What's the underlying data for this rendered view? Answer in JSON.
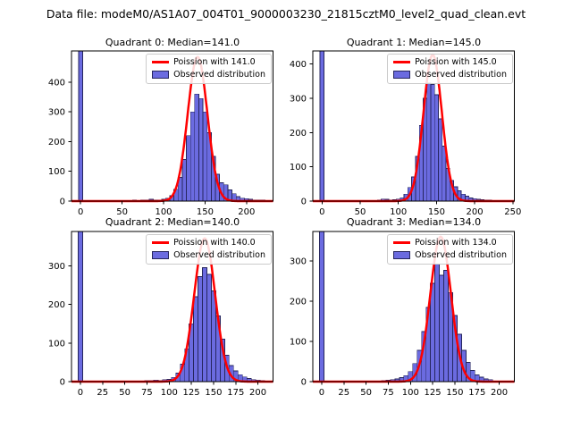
{
  "suptitle": "Data file: modeM0/AS1A07_004T01_9000003230_21815cztM0_level2_quad_clean.evt",
  "colors": {
    "curve": "#ff0000",
    "bar_fill": "#6b6be0",
    "bar_edge": "#26265e",
    "axes": "#000000",
    "legend_border": "#cbcbcb"
  },
  "chart_data": [
    {
      "type": "histogram+line",
      "title": "Quadrant 0: Median=141.0",
      "median": 141.0,
      "legend": {
        "line": "Poission with 141.0",
        "patch": "Observed distribution"
      },
      "xlim": [
        -11,
        232
      ],
      "ylim": [
        0,
        505
      ],
      "xticks": [
        0,
        50,
        100,
        150,
        200
      ],
      "yticks": [
        0,
        100,
        200,
        300,
        400
      ],
      "bin_width": 5,
      "bins": {
        "centers": [
          0,
          65,
          70,
          75,
          80,
          85,
          90,
          95,
          100,
          105,
          110,
          115,
          120,
          125,
          130,
          135,
          140,
          145,
          150,
          155,
          160,
          165,
          170,
          175,
          180,
          185,
          190,
          195,
          200,
          205,
          210,
          215,
          220
        ],
        "counts": [
          600,
          3,
          2,
          3,
          4,
          6,
          4,
          3,
          6,
          10,
          18,
          40,
          80,
          140,
          220,
          300,
          360,
          345,
          300,
          230,
          150,
          90,
          62,
          55,
          38,
          25,
          15,
          10,
          8,
          6,
          4,
          4,
          3
        ]
      },
      "curve": {
        "mu": 141.0,
        "sigma": 11.87,
        "amplitude": 485
      }
    },
    {
      "type": "histogram+line",
      "title": "Quadrant 1: Median=145.0",
      "median": 145.0,
      "legend": {
        "line": "Poission with 145.0",
        "patch": "Observed distribution"
      },
      "xlim": [
        -12,
        252
      ],
      "ylim": [
        0,
        438
      ],
      "xticks": [
        0,
        50,
        100,
        150,
        200,
        250
      ],
      "yticks": [
        0,
        100,
        200,
        300,
        400
      ],
      "bin_width": 5,
      "bins": {
        "centers": [
          0,
          75,
          80,
          85,
          90,
          95,
          100,
          105,
          110,
          115,
          120,
          125,
          130,
          135,
          140,
          145,
          150,
          155,
          160,
          165,
          170,
          175,
          180,
          185,
          190,
          195,
          200,
          205,
          210,
          215,
          220,
          225,
          230,
          235,
          240
        ],
        "counts": [
          600,
          3,
          6,
          5,
          3,
          4,
          6,
          10,
          20,
          40,
          70,
          130,
          220,
          300,
          345,
          340,
          310,
          240,
          160,
          95,
          60,
          42,
          30,
          20,
          14,
          9,
          7,
          5,
          4,
          3,
          3,
          2,
          2,
          2,
          1
        ]
      },
      "curve": {
        "mu": 145.0,
        "sigma": 12.04,
        "amplitude": 427
      }
    },
    {
      "type": "histogram+line",
      "title": "Quadrant 2: Median=140.0",
      "median": 140.0,
      "legend": {
        "line": "Poission with 140.0",
        "patch": "Observed distribution"
      },
      "xlim": [
        -10,
        217
      ],
      "ylim": [
        0,
        389
      ],
      "xticks": [
        0,
        25,
        50,
        75,
        100,
        125,
        150,
        175,
        200
      ],
      "yticks": [
        0,
        100,
        200,
        300
      ],
      "bin_width": 5,
      "bins": {
        "centers": [
          0,
          75,
          80,
          85,
          90,
          95,
          100,
          105,
          110,
          115,
          120,
          125,
          130,
          135,
          140,
          145,
          150,
          155,
          160,
          165,
          170,
          175,
          180,
          185,
          190,
          195,
          200,
          205
        ],
        "counts": [
          600,
          2,
          3,
          4,
          3,
          5,
          6,
          11,
          22,
          45,
          85,
          150,
          220,
          272,
          295,
          278,
          235,
          170,
          110,
          68,
          42,
          28,
          18,
          12,
          8,
          5,
          4,
          3
        ]
      },
      "curve": {
        "mu": 140.0,
        "sigma": 11.83,
        "amplitude": 371
      }
    },
    {
      "type": "histogram+line",
      "title": "Quadrant 3: Median=134.0",
      "median": 134.0,
      "legend": {
        "line": "Poission with 134.0",
        "patch": "Observed distribution"
      },
      "xlim": [
        -10,
        217
      ],
      "ylim": [
        0,
        374
      ],
      "xticks": [
        0,
        25,
        50,
        75,
        100,
        125,
        150,
        175,
        200
      ],
      "yticks": [
        0,
        100,
        200,
        300
      ],
      "bin_width": 5,
      "bins": {
        "centers": [
          0,
          70,
          75,
          80,
          85,
          90,
          95,
          100,
          105,
          110,
          115,
          120,
          125,
          130,
          135,
          140,
          145,
          150,
          155,
          160,
          165,
          170,
          175,
          180,
          185,
          190
        ],
        "counts": [
          600,
          2,
          3,
          5,
          7,
          10,
          15,
          25,
          45,
          78,
          125,
          185,
          245,
          293,
          265,
          277,
          222,
          165,
          118,
          78,
          48,
          28,
          17,
          11,
          7,
          5
        ]
      },
      "curve": {
        "mu": 134.0,
        "sigma": 11.58,
        "amplitude": 361
      }
    }
  ]
}
